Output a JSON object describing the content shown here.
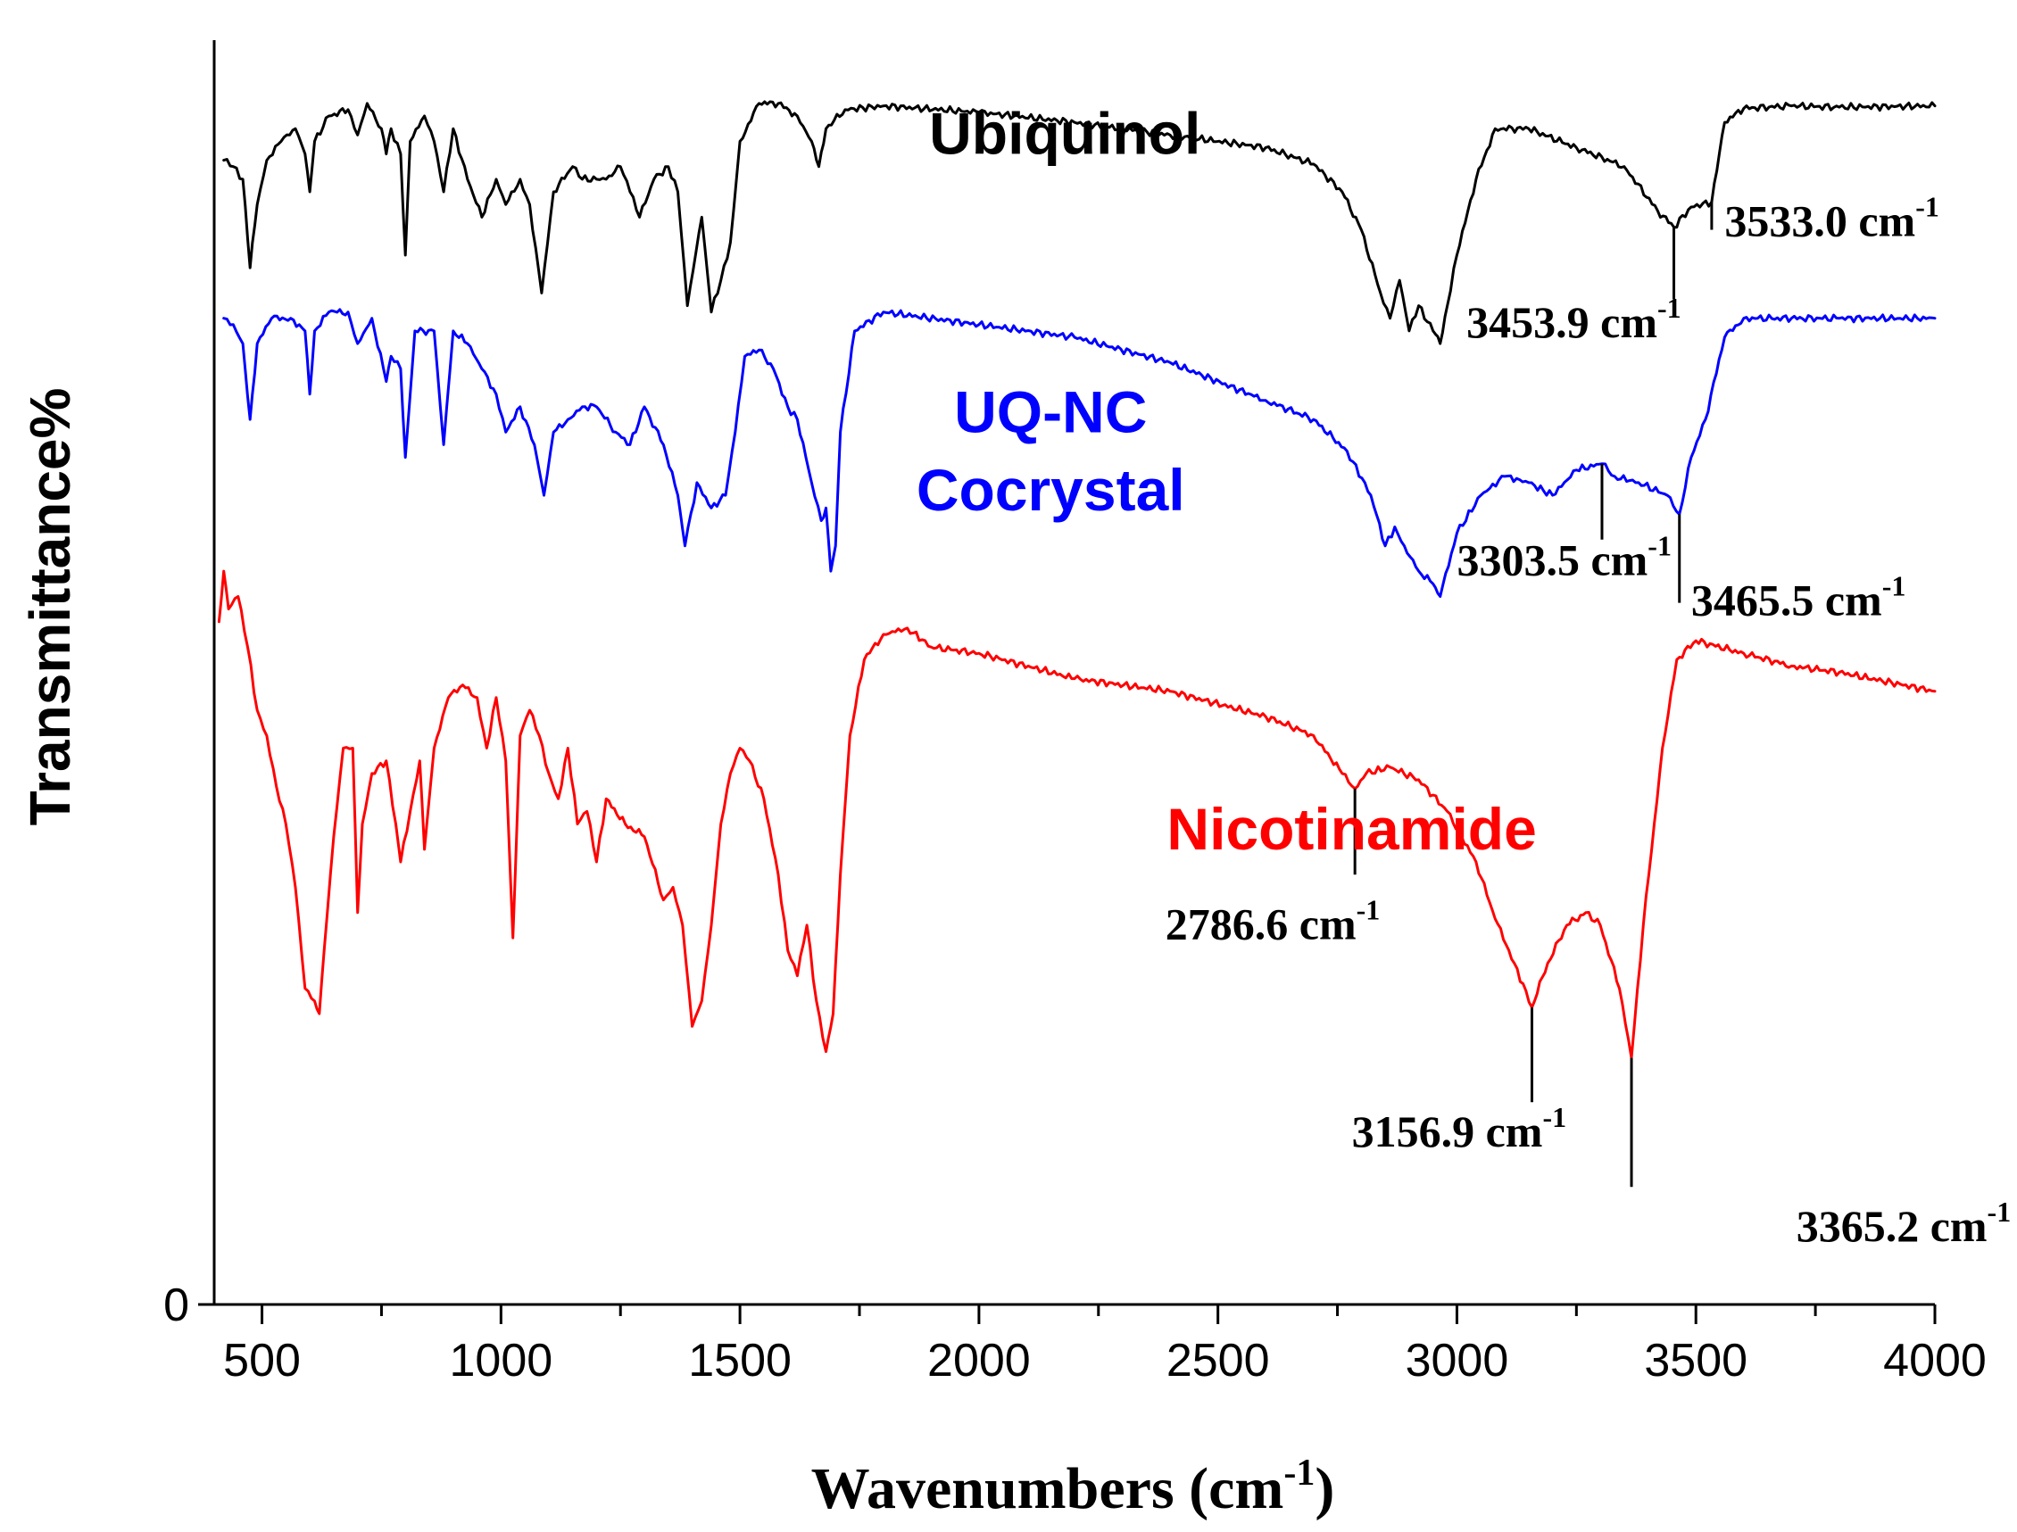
{
  "chart_data": {
    "type": "line",
    "xlabel": "Wavenumbers (cm",
    "xlabel_sup": "-1",
    "xlabel_close": ")",
    "ylabel": "Transmittance%",
    "xlim": [
      400,
      4000
    ],
    "ylim": [
      0,
      100
    ],
    "x_ticks": [
      500,
      1000,
      1500,
      2000,
      2500,
      3000,
      3500,
      4000
    ],
    "y_ticks": [
      0
    ],
    "grid": false,
    "legend": "inline labels",
    "series": [
      {
        "name": "Ubiquinol",
        "color": "#000000",
        "points": [
          [
            420,
            90.5
          ],
          [
            440,
            90
          ],
          [
            460,
            89
          ],
          [
            475,
            82
          ],
          [
            490,
            87
          ],
          [
            510,
            90.5
          ],
          [
            540,
            92
          ],
          [
            570,
            93
          ],
          [
            590,
            91
          ],
          [
            600,
            88
          ],
          [
            610,
            92
          ],
          [
            640,
            94
          ],
          [
            680,
            94.5
          ],
          [
            700,
            92.5
          ],
          [
            720,
            95
          ],
          [
            750,
            93
          ],
          [
            760,
            91
          ],
          [
            770,
            93
          ],
          [
            790,
            91
          ],
          [
            800,
            83
          ],
          [
            810,
            92
          ],
          [
            840,
            94
          ],
          [
            860,
            92
          ],
          [
            880,
            88
          ],
          [
            900,
            93
          ],
          [
            930,
            89
          ],
          [
            960,
            86
          ],
          [
            990,
            89
          ],
          [
            1010,
            87
          ],
          [
            1040,
            89
          ],
          [
            1060,
            87
          ],
          [
            1085,
            80
          ],
          [
            1110,
            88
          ],
          [
            1150,
            90
          ],
          [
            1170,
            89
          ],
          [
            1200,
            89
          ],
          [
            1220,
            89
          ],
          [
            1250,
            90
          ],
          [
            1270,
            88
          ],
          [
            1290,
            86
          ],
          [
            1320,
            89
          ],
          [
            1350,
            90
          ],
          [
            1370,
            88
          ],
          [
            1390,
            79
          ],
          [
            1420,
            86
          ],
          [
            1440,
            78.5
          ],
          [
            1460,
            81
          ],
          [
            1480,
            84
          ],
          [
            1500,
            92
          ],
          [
            1540,
            95
          ],
          [
            1580,
            95
          ],
          [
            1620,
            94
          ],
          [
            1650,
            92
          ],
          [
            1665,
            90
          ],
          [
            1680,
            93
          ],
          [
            1720,
            94.5
          ],
          [
            1800,
            94.8
          ],
          [
            2000,
            94.3
          ],
          [
            2200,
            93.5
          ],
          [
            2400,
            92.5
          ],
          [
            2600,
            91.5
          ],
          [
            2700,
            90.2
          ],
          [
            2760,
            88
          ],
          [
            2800,
            85
          ],
          [
            2840,
            80
          ],
          [
            2860,
            78
          ],
          [
            2880,
            81
          ],
          [
            2900,
            77
          ],
          [
            2920,
            79
          ],
          [
            2950,
            77
          ],
          [
            2965,
            76
          ],
          [
            2980,
            79
          ],
          [
            3000,
            83
          ],
          [
            3040,
            89
          ],
          [
            3080,
            93
          ],
          [
            3150,
            93
          ],
          [
            3250,
            91.5
          ],
          [
            3350,
            90
          ],
          [
            3420,
            86.5
          ],
          [
            3454,
            85.2
          ],
          [
            3490,
            86.8
          ],
          [
            3533,
            87.2
          ],
          [
            3560,
            93.5
          ],
          [
            3600,
            94.6
          ],
          [
            3700,
            94.8
          ],
          [
            3800,
            94.7
          ],
          [
            4000,
            94.8
          ]
        ]
      },
      {
        "name": "UQ-NC\nCocrystal",
        "color": "#0000ff",
        "points": [
          [
            420,
            78
          ],
          [
            440,
            77.5
          ],
          [
            460,
            76
          ],
          [
            475,
            70
          ],
          [
            490,
            76
          ],
          [
            520,
            78
          ],
          [
            560,
            78
          ],
          [
            590,
            77
          ],
          [
            600,
            72
          ],
          [
            610,
            77
          ],
          [
            640,
            78.5
          ],
          [
            680,
            78.5
          ],
          [
            700,
            76
          ],
          [
            730,
            78
          ],
          [
            760,
            73
          ],
          [
            770,
            75
          ],
          [
            790,
            74
          ],
          [
            800,
            67
          ],
          [
            820,
            77
          ],
          [
            860,
            77
          ],
          [
            880,
            68
          ],
          [
            900,
            77
          ],
          [
            930,
            76
          ],
          [
            960,
            74
          ],
          [
            990,
            72
          ],
          [
            1010,
            69
          ],
          [
            1040,
            71
          ],
          [
            1070,
            68
          ],
          [
            1090,
            64
          ],
          [
            1110,
            69
          ],
          [
            1140,
            70
          ],
          [
            1170,
            71
          ],
          [
            1200,
            71
          ],
          [
            1240,
            69
          ],
          [
            1270,
            68
          ],
          [
            1300,
            71
          ],
          [
            1340,
            68
          ],
          [
            1370,
            64
          ],
          [
            1385,
            60
          ],
          [
            1410,
            65
          ],
          [
            1440,
            63
          ],
          [
            1470,
            64
          ],
          [
            1490,
            69
          ],
          [
            1510,
            75
          ],
          [
            1540,
            75.5
          ],
          [
            1570,
            74
          ],
          [
            1600,
            71
          ],
          [
            1620,
            70
          ],
          [
            1650,
            65
          ],
          [
            1670,
            62
          ],
          [
            1680,
            63
          ],
          [
            1690,
            58
          ],
          [
            1700,
            60
          ],
          [
            1710,
            69
          ],
          [
            1740,
            77
          ],
          [
            1800,
            78.5
          ],
          [
            2000,
            77.5
          ],
          [
            2200,
            76.5
          ],
          [
            2400,
            74.5
          ],
          [
            2600,
            71.5
          ],
          [
            2700,
            70
          ],
          [
            2770,
            67.5
          ],
          [
            2820,
            64
          ],
          [
            2850,
            60
          ],
          [
            2870,
            61.5
          ],
          [
            2890,
            60
          ],
          [
            2920,
            58
          ],
          [
            2950,
            57
          ],
          [
            2965,
            56
          ],
          [
            3000,
            61
          ],
          [
            3050,
            64
          ],
          [
            3100,
            65.5
          ],
          [
            3150,
            65
          ],
          [
            3200,
            64
          ],
          [
            3250,
            66
          ],
          [
            3304,
            66.5
          ],
          [
            3330,
            65.5
          ],
          [
            3380,
            65
          ],
          [
            3440,
            64
          ],
          [
            3465.5,
            62.5
          ],
          [
            3490,
            67
          ],
          [
            3520,
            70
          ],
          [
            3560,
            76.5
          ],
          [
            3600,
            78
          ],
          [
            3700,
            78
          ],
          [
            3800,
            78
          ],
          [
            4000,
            78
          ]
        ]
      },
      {
        "name": "Nicotinamide",
        "color": "#ff0000",
        "points": [
          [
            410,
            54
          ],
          [
            420,
            58
          ],
          [
            430,
            55
          ],
          [
            450,
            56
          ],
          [
            470,
            52
          ],
          [
            490,
            47
          ],
          [
            510,
            45
          ],
          [
            530,
            41
          ],
          [
            550,
            38
          ],
          [
            570,
            33
          ],
          [
            590,
            25
          ],
          [
            610,
            24
          ],
          [
            620,
            23
          ],
          [
            630,
            28
          ],
          [
            650,
            37
          ],
          [
            670,
            44
          ],
          [
            690,
            44
          ],
          [
            700,
            31
          ],
          [
            710,
            38
          ],
          [
            730,
            42
          ],
          [
            760,
            43
          ],
          [
            780,
            38
          ],
          [
            790,
            35
          ],
          [
            810,
            39
          ],
          [
            830,
            43
          ],
          [
            840,
            36
          ],
          [
            860,
            44
          ],
          [
            890,
            48
          ],
          [
            920,
            49
          ],
          [
            950,
            48
          ],
          [
            970,
            44
          ],
          [
            990,
            48
          ],
          [
            1010,
            43
          ],
          [
            1025,
            29
          ],
          [
            1040,
            45
          ],
          [
            1060,
            47
          ],
          [
            1080,
            45
          ],
          [
            1100,
            42
          ],
          [
            1120,
            40
          ],
          [
            1140,
            44
          ],
          [
            1160,
            38
          ],
          [
            1180,
            39
          ],
          [
            1200,
            35
          ],
          [
            1220,
            40
          ],
          [
            1260,
            38
          ],
          [
            1300,
            37
          ],
          [
            1340,
            32
          ],
          [
            1360,
            33
          ],
          [
            1380,
            30
          ],
          [
            1400,
            22
          ],
          [
            1420,
            24
          ],
          [
            1440,
            30
          ],
          [
            1460,
            38
          ],
          [
            1480,
            42
          ],
          [
            1500,
            44
          ],
          [
            1520,
            43
          ],
          [
            1550,
            40
          ],
          [
            1580,
            34
          ],
          [
            1600,
            28
          ],
          [
            1620,
            26
          ],
          [
            1640,
            30
          ],
          [
            1660,
            24
          ],
          [
            1680,
            20
          ],
          [
            1695,
            23
          ],
          [
            1710,
            34
          ],
          [
            1730,
            45
          ],
          [
            1760,
            51
          ],
          [
            1800,
            53
          ],
          [
            1850,
            53.5
          ],
          [
            1900,
            52
          ],
          [
            2000,
            51.5
          ],
          [
            2200,
            49.5
          ],
          [
            2400,
            48.5
          ],
          [
            2600,
            46.5
          ],
          [
            2700,
            45
          ],
          [
            2760,
            42
          ],
          [
            2786.6,
            40.8
          ],
          [
            2810,
            42
          ],
          [
            2860,
            42.5
          ],
          [
            2920,
            41.5
          ],
          [
            2980,
            39
          ],
          [
            3040,
            35
          ],
          [
            3080,
            30.5
          ],
          [
            3120,
            27
          ],
          [
            3156.9,
            23.5
          ],
          [
            3190,
            27
          ],
          [
            3230,
            30
          ],
          [
            3270,
            31
          ],
          [
            3300,
            30
          ],
          [
            3340,
            25
          ],
          [
            3365.2,
            19.5
          ],
          [
            3390,
            30
          ],
          [
            3430,
            44
          ],
          [
            3460,
            51
          ],
          [
            3500,
            52.5
          ],
          [
            3600,
            51.5
          ],
          [
            3700,
            50.5
          ],
          [
            3800,
            50
          ],
          [
            4000,
            48.5
          ]
        ]
      }
    ],
    "series_labels": [
      {
        "text": "Ubiquinol",
        "color": "#000000",
        "x": 2180,
        "y": 91
      },
      {
        "text": "UQ-NC",
        "color": "#0000ff",
        "x": 2150,
        "y": 69
      },
      {
        "text": "Cocrystal",
        "color": "#0000ff",
        "x": 2150,
        "y": 62.8
      },
      {
        "text": "Nicotinamide",
        "color": "#ff0000",
        "x": 2780,
        "y": 36
      }
    ],
    "peak_annotations": [
      {
        "wavenumber": 3453.9,
        "value": "3453.9 cm",
        "sup": "-1",
        "line_from": 85.2,
        "line_to": 79.5,
        "text_x": 3020,
        "text_y": 76.5
      },
      {
        "wavenumber": 3533.0,
        "value": "3533.0 cm",
        "sup": "-1",
        "line_from": 87.2,
        "line_to": 85,
        "text_x": 3560,
        "text_y": 84.5
      },
      {
        "wavenumber": 3303.5,
        "value": "3303.5 cm",
        "sup": "-1",
        "line_from": 66.5,
        "line_to": 60.5,
        "text_x": 3000,
        "text_y": 57.7
      },
      {
        "wavenumber": 3465.5,
        "value": "3465.5 cm",
        "sup": "-1",
        "line_from": 62.5,
        "line_to": 55.5,
        "text_x": 3490,
        "text_y": 54.5
      },
      {
        "wavenumber": 2786.6,
        "value": "2786.6 cm",
        "sup": "-1",
        "line_from": 40.8,
        "line_to": 34,
        "text_x": 2390,
        "text_y": 28.9
      },
      {
        "wavenumber": 3156.9,
        "value": "3156.9 cm",
        "sup": "-1",
        "line_from": 23.5,
        "line_to": 16,
        "text_x": 2780,
        "text_y": 12.5
      },
      {
        "wavenumber": 3365.2,
        "value": "3365.2 cm",
        "sup": "-1",
        "line_from": 19.5,
        "line_to": 9.3,
        "text_x": 3710,
        "text_y": 5
      }
    ]
  }
}
